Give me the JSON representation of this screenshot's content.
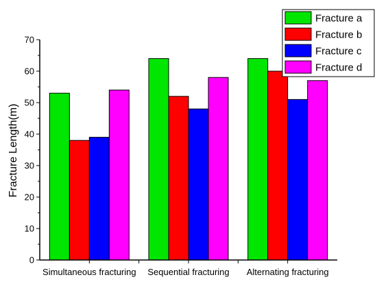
{
  "chart_data": {
    "type": "bar",
    "categories": [
      "Simultaneous fracturing",
      "Sequential fracturing",
      "Alternating fracturing"
    ],
    "series": [
      {
        "name": "Fracture a",
        "color": "#00e600",
        "values": [
          53,
          64,
          64
        ]
      },
      {
        "name": "Fracture b",
        "color": "#ff0000",
        "values": [
          38,
          52,
          60
        ]
      },
      {
        "name": "Fracture c",
        "color": "#0000ff",
        "values": [
          39,
          48,
          51
        ]
      },
      {
        "name": "Fracture d",
        "color": "#ff00ff",
        "values": [
          54,
          58,
          57
        ]
      }
    ],
    "xlabel": "",
    "ylabel": "Fracture Length(m)",
    "ylim": [
      0,
      70
    ],
    "yticks": [
      0,
      10,
      20,
      30,
      40,
      50,
      60,
      70
    ],
    "grid": false,
    "legend_position": "top-right"
  }
}
